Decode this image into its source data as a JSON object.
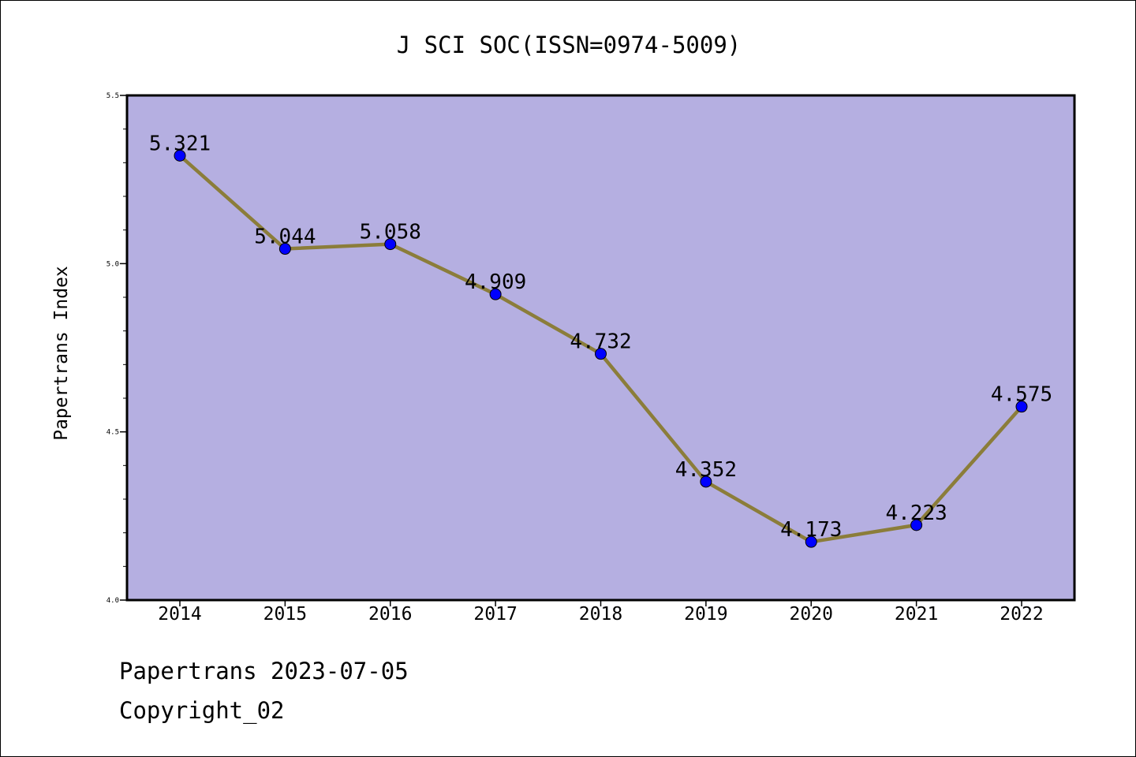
{
  "chart_data": {
    "type": "line",
    "title": "J SCI SOC(ISSN=0974-5009)",
    "xlabel": "",
    "ylabel": "Papertrans Index",
    "categories": [
      "2014",
      "2015",
      "2016",
      "2017",
      "2018",
      "2019",
      "2020",
      "2021",
      "2022"
    ],
    "values": [
      5.321,
      5.044,
      5.058,
      4.909,
      4.732,
      4.352,
      4.173,
      4.223,
      4.575
    ],
    "data_labels": [
      "5.321",
      "5.044",
      "5.058",
      "4.909",
      "4.732",
      "4.352",
      "4.173",
      "4.223",
      "4.575"
    ],
    "ylim": [
      4.0,
      5.5
    ],
    "y_ticks": [
      "4.0",
      "4.5",
      "5.0",
      "5.5"
    ],
    "grid": false,
    "legend": "none",
    "colors": {
      "plot_background": "#b5afe1",
      "line": "#8b7d3a",
      "marker": "#0000ff"
    }
  },
  "footer": {
    "date_line": "Papertrans 2023-07-05",
    "copyright_line": "Copyright_02"
  }
}
